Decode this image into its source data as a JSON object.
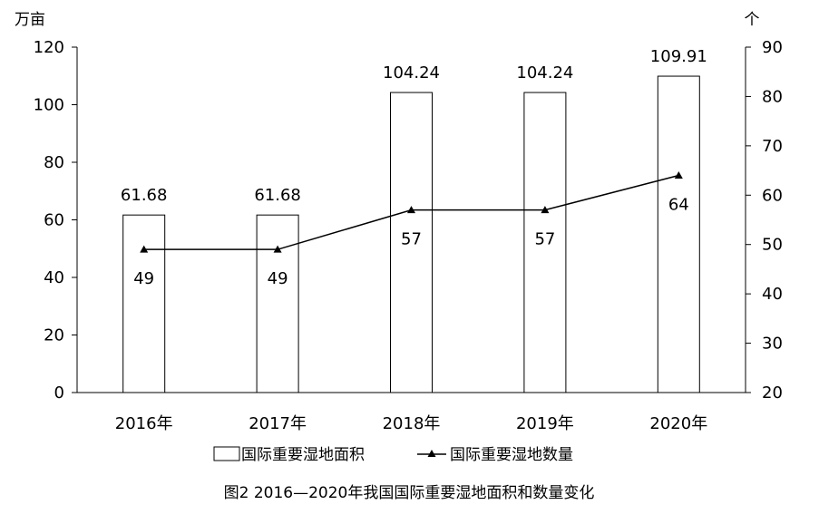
{
  "chart_data": {
    "type": "bar",
    "categories": [
      "2016年",
      "2017年",
      "2018年",
      "2019年",
      "2020年"
    ],
    "series": [
      {
        "name": "国际重要湿地面积",
        "type": "bar",
        "axis": "left",
        "values": [
          61.68,
          61.68,
          104.24,
          104.24,
          109.91
        ]
      },
      {
        "name": "国际重要湿地数量",
        "type": "line",
        "axis": "right",
        "values": [
          49,
          49,
          57,
          57,
          64
        ]
      }
    ],
    "bar_labels": [
      "61.68",
      "61.68",
      "104.24",
      "104.24",
      "109.91"
    ],
    "line_labels": [
      "49",
      "49",
      "57",
      "57",
      "64"
    ],
    "left_axis": {
      "unit": "万亩",
      "ylim": [
        0,
        120
      ],
      "ticks": [
        "0",
        "20",
        "40",
        "60",
        "80",
        "100",
        "120"
      ]
    },
    "right_axis": {
      "unit": "个",
      "ylim": [
        20,
        90
      ],
      "ticks": [
        "20",
        "30",
        "40",
        "50",
        "60",
        "70",
        "80",
        "90"
      ]
    },
    "legend": {
      "position": "bottom",
      "bar_label": "国际重要湿地面积",
      "line_label": "国际重要湿地数量"
    },
    "caption": "图2 2016—2020年我国国际重要湿地面积和数量变化",
    "grid": false
  }
}
